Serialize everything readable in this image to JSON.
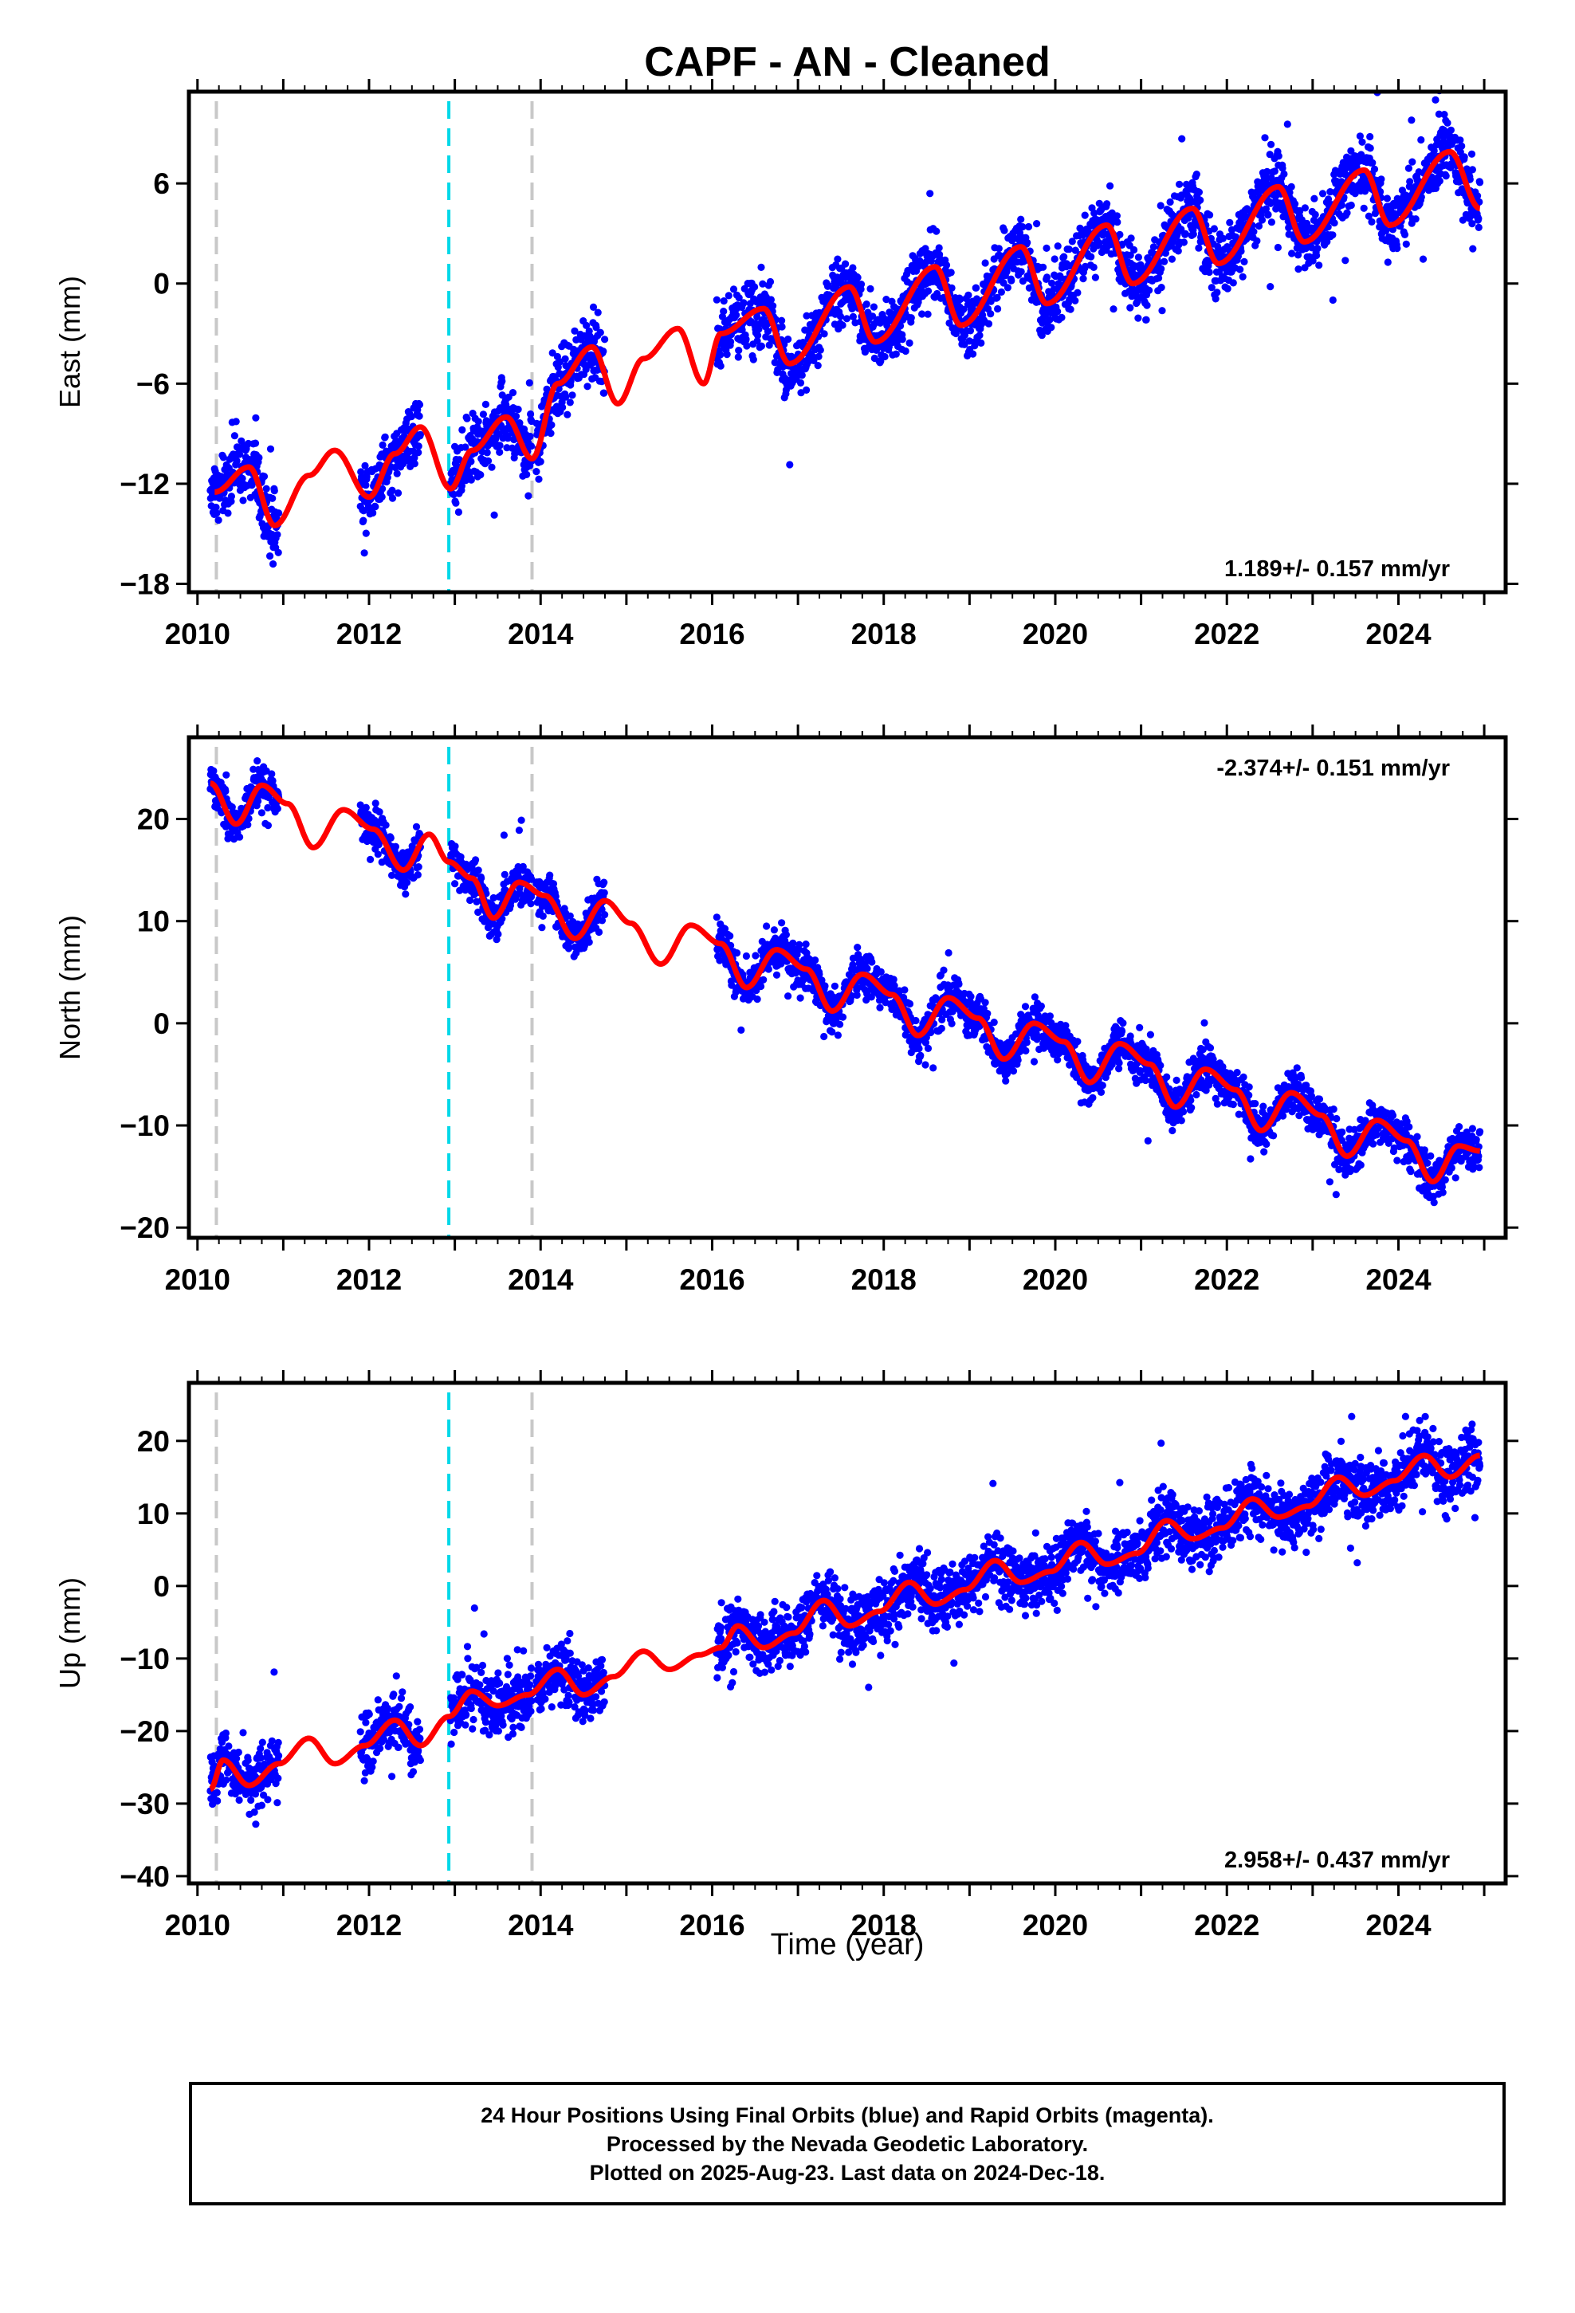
{
  "title": "CAPF  - AN - Cleaned",
  "colors": {
    "final_orbits": "#0000ff",
    "model_fit": "#ff0000",
    "offset_equipment": "#c8c8c8",
    "offset_earthquake": "#00d8e8"
  },
  "xaxis": {
    "label": "Time (year)",
    "range": [
      2009.9,
      2025.25
    ],
    "ticks": [
      "2010",
      "2012",
      "2014",
      "2016",
      "2018",
      "2020",
      "2022",
      "2024"
    ]
  },
  "offset_lines": [
    {
      "year": 2010.22,
      "type": "equipment"
    },
    {
      "year": 2012.93,
      "type": "earthquake"
    },
    {
      "year": 2013.9,
      "type": "equipment"
    }
  ],
  "chart_data": [
    {
      "type": "scatter",
      "component": "east",
      "ylabel": "East (mm)",
      "ylim": [
        -18.5,
        11.5
      ],
      "yticks": [
        "6",
        "0",
        "-6",
        "-12",
        "-18"
      ],
      "rate": "1.189+/- 0.157 mm/yr",
      "rate_position": "bottom-right",
      "series": [
        {
          "name": "Final Orbits",
          "kind": "points",
          "segments": [
            [
              2010.15,
              2010.95
            ],
            [
              2011.9,
              2012.6
            ],
            [
              2012.95,
              2013.9
            ],
            [
              2013.95,
              2014.75
            ],
            [
              2016.05,
              2024.95
            ]
          ]
        },
        {
          "name": "Model fit",
          "kind": "line",
          "x": [
            2010.2,
            2010.6,
            2010.9,
            2011.3,
            2011.6,
            2012.0,
            2012.3,
            2012.6,
            2012.95,
            2013.2,
            2013.6,
            2013.9,
            2014.2,
            2014.6,
            2014.9,
            2015.2,
            2015.6,
            2015.9,
            2016.1,
            2016.6,
            2016.9,
            2017.6,
            2017.9,
            2018.6,
            2018.9,
            2019.6,
            2019.9,
            2020.6,
            2020.9,
            2021.6,
            2021.9,
            2022.6,
            2022.9,
            2023.6,
            2023.9,
            2024.6,
            2024.95
          ],
          "y": [
            -12.5,
            -11.0,
            -14.5,
            -11.5,
            -10.0,
            -12.8,
            -10.2,
            -8.6,
            -12.3,
            -10.0,
            -8.0,
            -10.5,
            -6.0,
            -3.8,
            -7.2,
            -4.5,
            -2.7,
            -6.0,
            -3.0,
            -1.5,
            -4.8,
            -0.2,
            -3.5,
            1.0,
            -2.5,
            2.2,
            -1.2,
            3.5,
            0.0,
            4.5,
            1.2,
            5.8,
            2.5,
            6.8,
            3.5,
            7.9,
            4.5
          ]
        }
      ]
    },
    {
      "type": "scatter",
      "component": "north",
      "ylabel": "North (mm)",
      "ylim": [
        -21,
        28
      ],
      "yticks": [
        "20",
        "10",
        "0",
        "-10",
        "-20"
      ],
      "rate": "-2.374+/- 0.151 mm/yr",
      "rate_position": "top-right",
      "series": [
        {
          "name": "Final Orbits",
          "kind": "points",
          "segments": [
            [
              2010.15,
              2010.95
            ],
            [
              2011.9,
              2012.6
            ],
            [
              2012.95,
              2013.9
            ],
            [
              2013.95,
              2014.75
            ],
            [
              2016.05,
              2024.95
            ]
          ]
        },
        {
          "name": "Model fit",
          "kind": "line",
          "x": [
            2010.15,
            2010.45,
            2010.75,
            2011.05,
            2011.35,
            2011.7,
            2012.05,
            2012.4,
            2012.7,
            2012.93,
            2013.2,
            2013.45,
            2013.75,
            2014.05,
            2014.4,
            2014.75,
            2015.05,
            2015.4,
            2015.75,
            2016.1,
            2016.4,
            2016.75,
            2017.1,
            2017.4,
            2017.75,
            2018.1,
            2018.4,
            2018.75,
            2019.1,
            2019.4,
            2019.75,
            2020.1,
            2020.4,
            2020.75,
            2021.1,
            2021.4,
            2021.75,
            2022.1,
            2022.4,
            2022.75,
            2023.1,
            2023.4,
            2023.75,
            2024.1,
            2024.4,
            2024.7,
            2024.95
          ],
          "y": [
            23.5,
            19.5,
            23.3,
            21.5,
            17.2,
            20.9,
            19.0,
            15.0,
            18.5,
            15.8,
            14.2,
            10.3,
            13.8,
            12.5,
            8.3,
            12.0,
            9.8,
            5.8,
            9.6,
            7.8,
            3.5,
            7.2,
            5.3,
            1.2,
            4.8,
            2.8,
            -1.2,
            2.5,
            0.5,
            -3.5,
            0.0,
            -1.8,
            -5.8,
            -2.0,
            -4.0,
            -8.2,
            -4.5,
            -6.5,
            -10.5,
            -6.8,
            -9.0,
            -13.0,
            -9.5,
            -11.5,
            -15.5,
            -12.0,
            -12.5
          ]
        }
      ]
    },
    {
      "type": "scatter",
      "component": "up",
      "ylabel": "Up (mm)",
      "ylim": [
        -41,
        28
      ],
      "yticks": [
        "20",
        "10",
        "0",
        "-10",
        "-20",
        "-30",
        "-40"
      ],
      "rate": "2.958+/- 0.437 mm/yr",
      "rate_position": "bottom-right",
      "series": [
        {
          "name": "Final Orbits",
          "kind": "points",
          "segments": [
            [
              2010.15,
              2010.95
            ],
            [
              2011.9,
              2012.6
            ],
            [
              2012.95,
              2013.9
            ],
            [
              2013.95,
              2014.75
            ],
            [
              2016.05,
              2024.95
            ]
          ]
        },
        {
          "name": "Model fit",
          "kind": "line",
          "x": [
            2010.15,
            2010.3,
            2010.6,
            2010.95,
            2011.3,
            2011.6,
            2011.95,
            2012.3,
            2012.6,
            2012.93,
            2013.2,
            2013.5,
            2013.85,
            2014.2,
            2014.5,
            2014.85,
            2015.2,
            2015.5,
            2015.85,
            2016.1,
            2016.3,
            2016.6,
            2016.95,
            2017.3,
            2017.6,
            2017.95,
            2018.3,
            2018.6,
            2018.95,
            2019.3,
            2019.6,
            2019.95,
            2020.3,
            2020.6,
            2020.95,
            2021.3,
            2021.6,
            2021.95,
            2022.3,
            2022.6,
            2022.95,
            2023.3,
            2023.6,
            2023.95,
            2024.3,
            2024.6,
            2024.95
          ],
          "y": [
            -28.0,
            -24.0,
            -27.5,
            -24.5,
            -21.0,
            -24.5,
            -22.0,
            -18.5,
            -22.0,
            -18.0,
            -14.5,
            -16.5,
            -15.0,
            -11.5,
            -15.0,
            -12.5,
            -9.0,
            -11.5,
            -9.5,
            -8.5,
            -5.5,
            -8.5,
            -6.5,
            -2.0,
            -5.5,
            -3.5,
            0.5,
            -2.5,
            -0.5,
            3.5,
            0.5,
            2.0,
            6.0,
            3.0,
            4.5,
            9.0,
            6.5,
            8.0,
            12.0,
            9.5,
            11.0,
            15.0,
            12.5,
            14.5,
            18.0,
            15.0,
            18.0
          ]
        }
      ]
    }
  ],
  "footer": {
    "line1": "24 Hour Positions Using Final Orbits (blue) and Rapid Orbits (magenta).",
    "line2": "Processed by the Nevada Geodetic Laboratory.",
    "line3": "Plotted on 2025-Aug-23. Last data on 2024-Dec-18."
  }
}
